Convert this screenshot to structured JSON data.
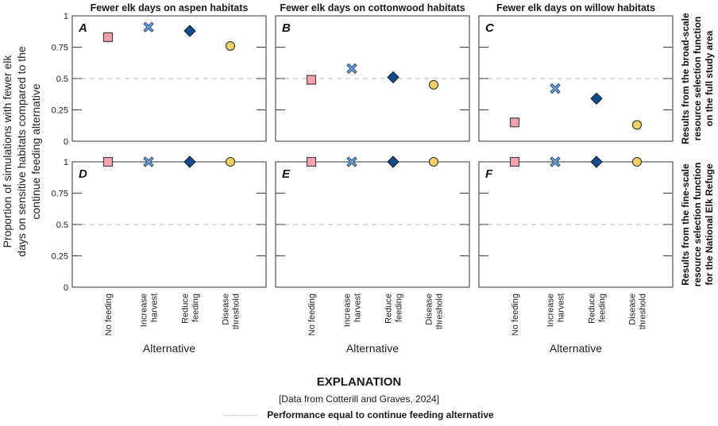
{
  "explanation": {
    "title": "EXPLANATION",
    "source": "[Data from Cotterill and Graves, 2024]",
    "legend_label": "Performance equal to continue feeding alternative"
  },
  "colors": {
    "no_feeding": "#f4a0ad",
    "increase_harvest": "#6fa5dc",
    "reduce_feeding": "#154a8a",
    "disease_threshold": "#f2cf63",
    "reference_line": "#c8c8c8",
    "frame": "#555555"
  },
  "chart_data": {
    "type": "scatter",
    "title": "",
    "ylabel": "Proportion of simulations with fewer elk days on sensitive habitats compared to the continue feeding alternative",
    "ylabel_lines": [
      "Proportion of simulations with fewer elk",
      "days on sensitive habitats compared to the",
      "continue feeding alternative"
    ],
    "xlabel": "Alternative",
    "ylim": [
      0,
      1
    ],
    "yticks": [
      "0",
      "0.25",
      "0.5",
      "0.75",
      "1"
    ],
    "reference_line": 0.5,
    "categories": [
      "No feeding",
      "Increase harvest",
      "Reduce feeding",
      "Disease threshold"
    ],
    "category_lines": [
      [
        "No feeding"
      ],
      [
        "Increase",
        "harvest"
      ],
      [
        "Reduce",
        "feeding"
      ],
      [
        "Disease",
        "threshold"
      ]
    ],
    "markers": [
      "square",
      "x",
      "diamond",
      "circle"
    ],
    "column_titles": [
      "Fewer elk days on aspen habitats",
      "Fewer elk days on cottonwood habitats",
      "Fewer elk days on willow habitats"
    ],
    "row_labels": [
      [
        "Results from the broad-scale",
        "resource selection function",
        "on the full study area"
      ],
      [
        "Results from the fine-scale",
        "resource selection function",
        "for the National Elk Refuge"
      ]
    ],
    "panels": [
      {
        "letter": "A",
        "habitat": "aspen",
        "scale": "broad",
        "values": [
          0.83,
          0.91,
          0.88,
          0.76
        ]
      },
      {
        "letter": "B",
        "habitat": "cottonwood",
        "scale": "broad",
        "values": [
          0.49,
          0.58,
          0.51,
          0.45
        ]
      },
      {
        "letter": "C",
        "habitat": "willow",
        "scale": "broad",
        "values": [
          0.15,
          0.42,
          0.34,
          0.13
        ]
      },
      {
        "letter": "D",
        "habitat": "aspen",
        "scale": "fine",
        "values": [
          1.0,
          1.0,
          1.0,
          1.0
        ]
      },
      {
        "letter": "E",
        "habitat": "cottonwood",
        "scale": "fine",
        "values": [
          1.0,
          1.0,
          1.0,
          1.0
        ]
      },
      {
        "letter": "F",
        "habitat": "willow",
        "scale": "fine",
        "values": [
          1.0,
          1.0,
          1.0,
          1.0
        ]
      }
    ]
  }
}
